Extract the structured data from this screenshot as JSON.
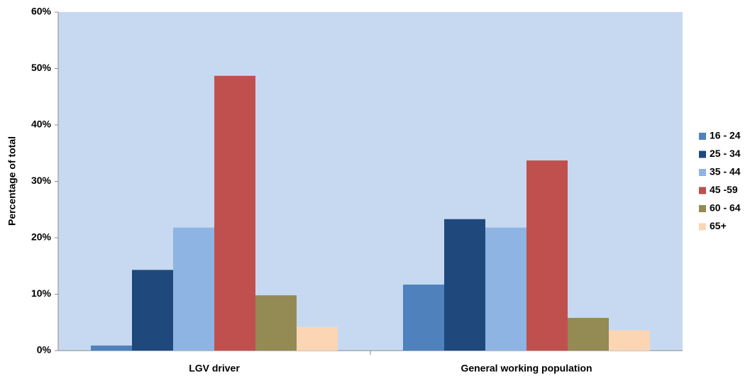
{
  "chart_data": {
    "type": "bar",
    "y_label": "Percentage of total",
    "categories": [
      "LGV driver",
      "General working population"
    ],
    "series": [
      {
        "name": "16 - 24",
        "color": "#4f81bd",
        "values": [
          0.9,
          11.7
        ]
      },
      {
        "name": "25 - 34",
        "color": "#1f497d",
        "values": [
          14.3,
          23.3
        ]
      },
      {
        "name": "35 - 44",
        "color": "#8eb4e3",
        "values": [
          21.8,
          21.8
        ]
      },
      {
        "name": "45 -59",
        "color": "#c0504d",
        "values": [
          48.7,
          33.7
        ]
      },
      {
        "name": "60 - 64",
        "color": "#948a54",
        "values": [
          9.8,
          5.8
        ]
      },
      {
        "name": "65+",
        "color": "#fcd5b5",
        "values": [
          4.2,
          3.6
        ]
      }
    ],
    "ylim": [
      0,
      60
    ],
    "yticks": [
      {
        "value": 0,
        "label": "0%"
      },
      {
        "value": 10,
        "label": "10%"
      },
      {
        "value": 20,
        "label": "20%"
      },
      {
        "value": 30,
        "label": "30%"
      },
      {
        "value": 40,
        "label": "40%"
      },
      {
        "value": 50,
        "label": "50%"
      },
      {
        "value": 60,
        "label": "60%"
      }
    ],
    "plot_background": "#c6d9f1",
    "legend": "right"
  }
}
